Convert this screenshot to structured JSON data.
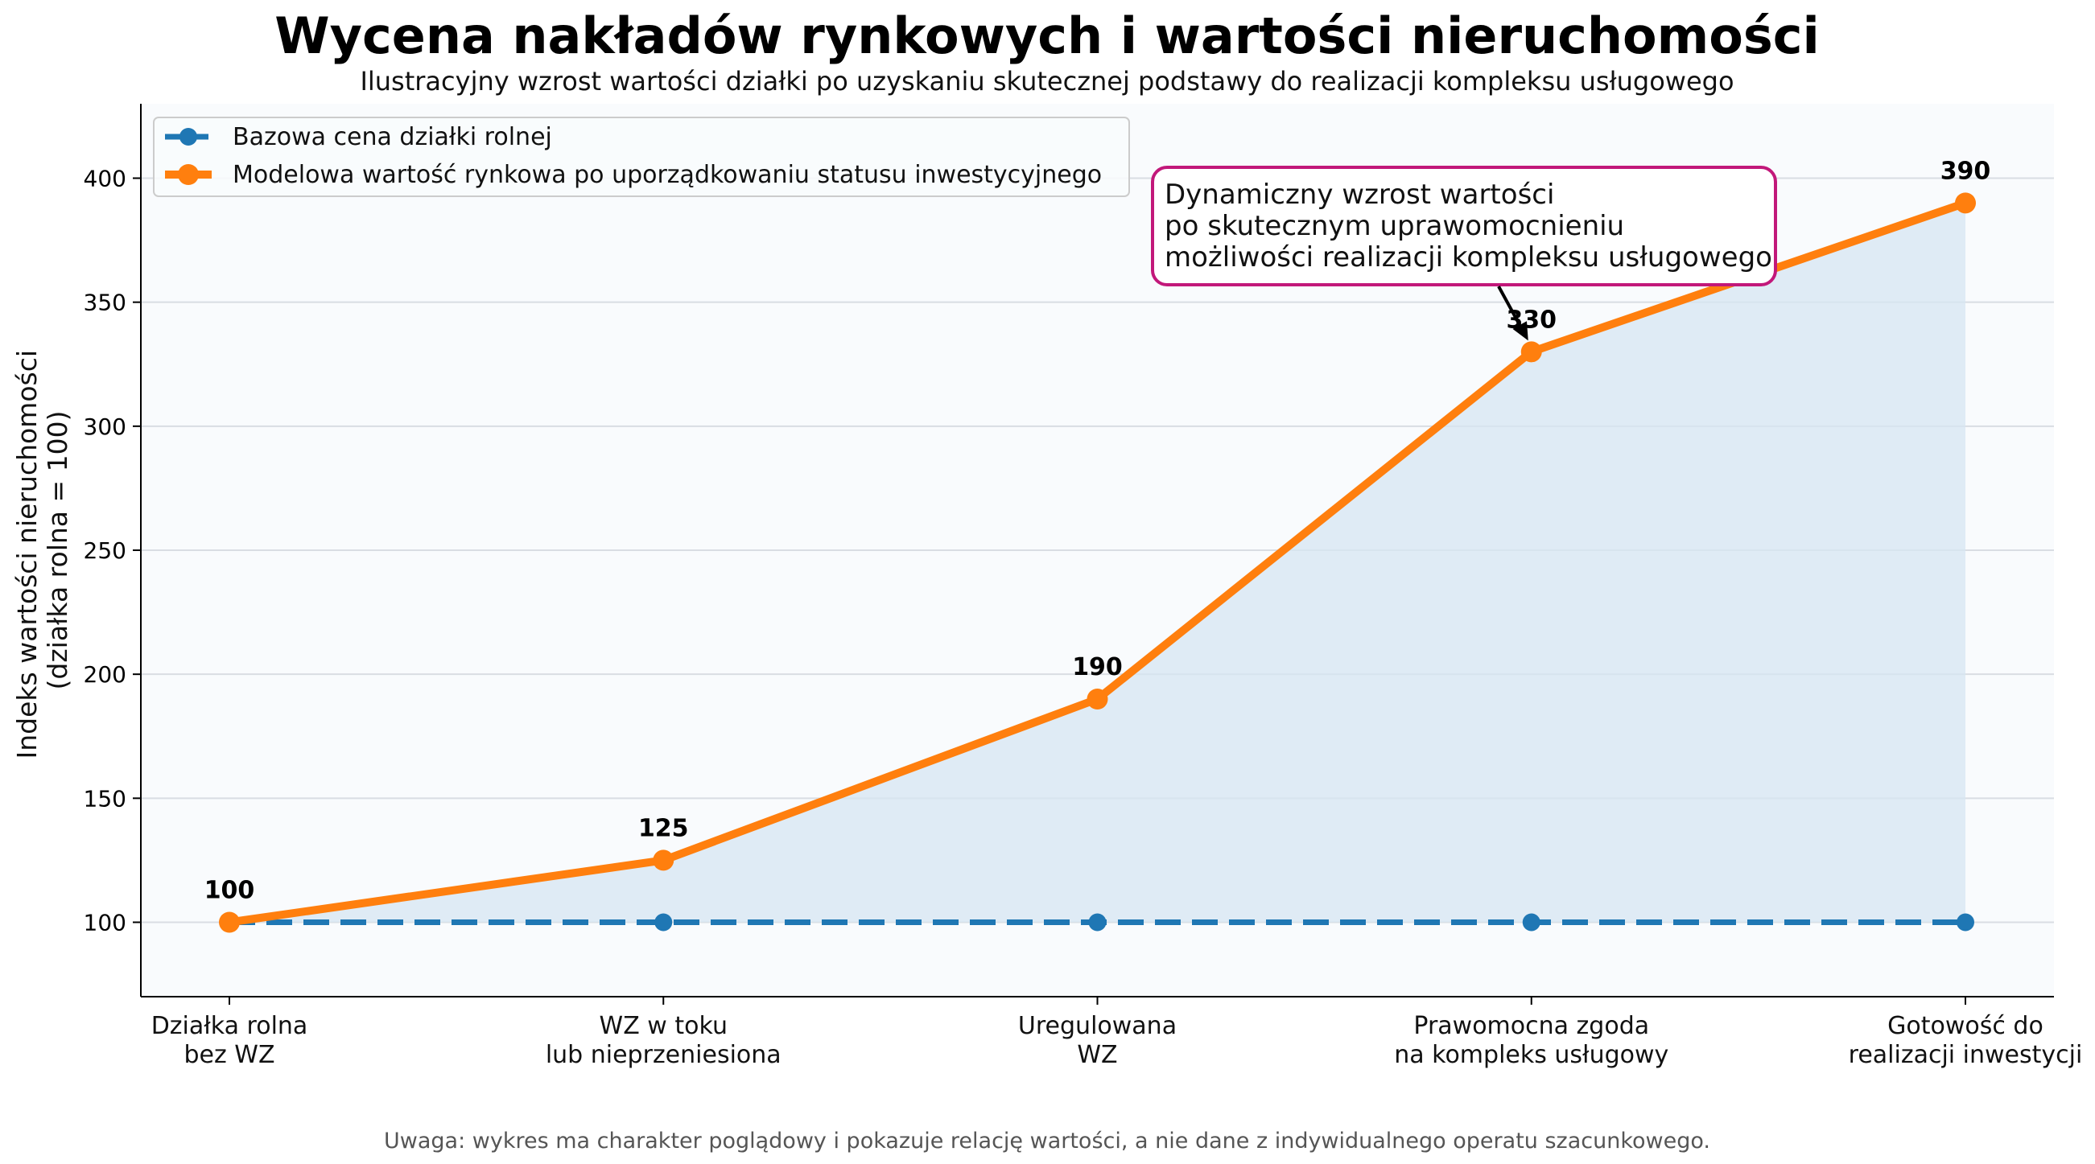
{
  "chart_data": {
    "type": "line",
    "title": "Wycena nakładów rynkowych i wartości nieruchomości",
    "subtitle": "Ilustracyjny wzrost wartości działki po uzyskaniu skutecznej podstawy do realizacji kompleksu usługowego",
    "ylabel_lines": [
      "Indeks wartości nieruchomości",
      "(działka rolna = 100)"
    ],
    "xlabel": "",
    "categories": [
      [
        "Działka rolna",
        "bez WZ"
      ],
      [
        "WZ w toku",
        "lub nieprzeniesiona"
      ],
      [
        "Uregulowana",
        "WZ"
      ],
      [
        "Prawomocna zgoda",
        "na kompleks usługowy"
      ],
      [
        "Gotowość do",
        "realizacji inwestycji"
      ]
    ],
    "ylim": [
      70,
      430
    ],
    "yticks": [
      100,
      150,
      200,
      250,
      300,
      350,
      400
    ],
    "grid": "horizontal",
    "legend_position": "top-left",
    "fill_between_series": true,
    "series": [
      {
        "name": "Bazowa cena działki rolnej",
        "values": [
          100,
          100,
          100,
          100,
          100
        ],
        "color": "#1f77b4",
        "style": "dashed"
      },
      {
        "name": "Modelowa wartość rynkowa po uporządkowaniu statusu inwestycyjnego",
        "values": [
          100,
          125,
          190,
          330,
          390
        ],
        "color": "#ff7f0e",
        "style": "solid",
        "data_labels": [
          "100",
          "125",
          "190",
          "330",
          "390"
        ]
      }
    ],
    "fill_color": "#d6e6f2",
    "plot_background": "#f9fbfd",
    "annotation": {
      "lines": [
        "Dynamiczny wzrost wartości",
        "po skutecznym uprawomocnieniu",
        "możliwości realizacji kompleksu usługowego"
      ],
      "target_index": 3,
      "border_color": "#c2187a"
    },
    "note": "Uwaga: wykres ma charakter poglądowy i pokazuje relację wartości, a nie dane z indywidualnego operatu szacunkowego."
  }
}
